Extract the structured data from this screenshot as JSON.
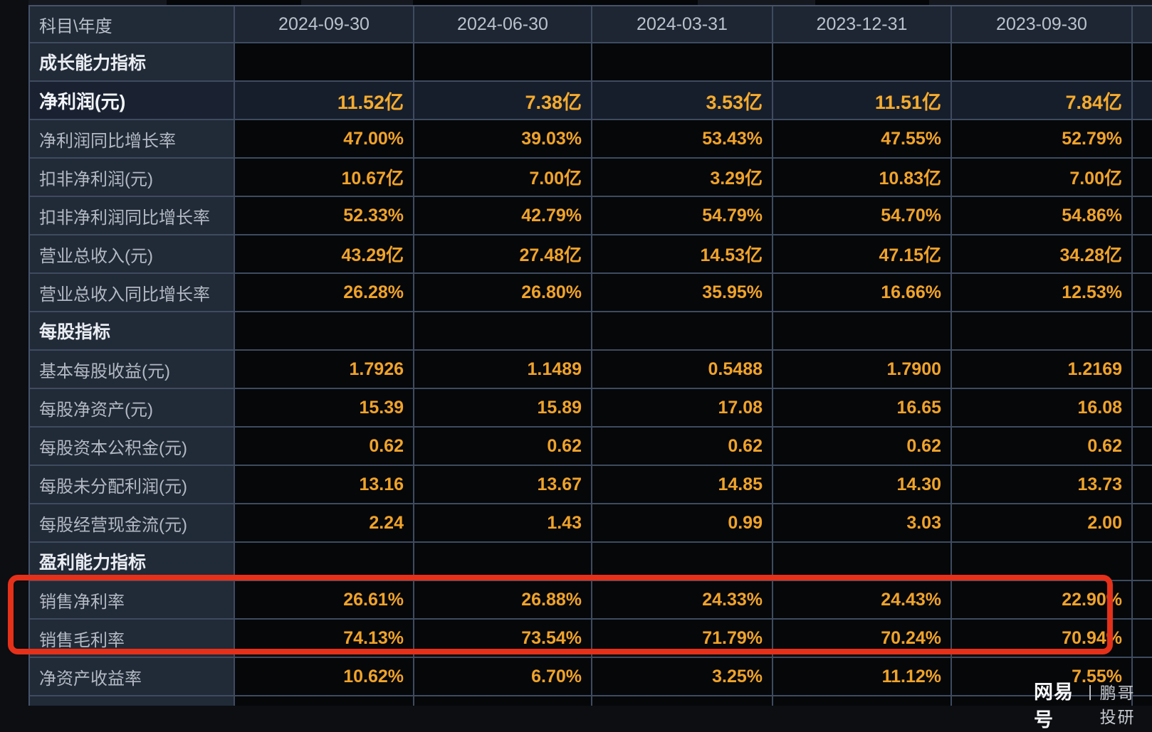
{
  "table": {
    "header": {
      "label": "科目\\年度",
      "dates": [
        "2024-09-30",
        "2024-06-30",
        "2024-03-31",
        "2023-12-31",
        "2023-09-30"
      ]
    },
    "rows": [
      {
        "type": "section",
        "label": "成长能力指标",
        "values": [
          "",
          "",
          "",
          "",
          ""
        ]
      },
      {
        "type": "highlight",
        "label": "净利润(元)",
        "values": [
          "11.52亿",
          "7.38亿",
          "3.53亿",
          "11.51亿",
          "7.84亿"
        ]
      },
      {
        "type": "data",
        "label": "净利润同比增长率",
        "values": [
          "47.00%",
          "39.03%",
          "53.43%",
          "47.55%",
          "52.79%"
        ]
      },
      {
        "type": "data",
        "label": "扣非净利润(元)",
        "values": [
          "10.67亿",
          "7.00亿",
          "3.29亿",
          "10.83亿",
          "7.00亿"
        ]
      },
      {
        "type": "data",
        "label": "扣非净利润同比增长率",
        "values": [
          "52.33%",
          "42.79%",
          "54.79%",
          "54.70%",
          "54.86%"
        ]
      },
      {
        "type": "data",
        "label": "营业总收入(元)",
        "values": [
          "43.29亿",
          "27.48亿",
          "14.53亿",
          "47.15亿",
          "34.28亿"
        ]
      },
      {
        "type": "data",
        "label": "营业总收入同比增长率",
        "values": [
          "26.28%",
          "26.80%",
          "35.95%",
          "16.66%",
          "12.53%"
        ]
      },
      {
        "type": "section",
        "label": "每股指标",
        "values": [
          "",
          "",
          "",
          "",
          ""
        ]
      },
      {
        "type": "data",
        "label": "基本每股收益(元)",
        "values": [
          "1.7926",
          "1.1489",
          "0.5488",
          "1.7900",
          "1.2169"
        ]
      },
      {
        "type": "data",
        "label": "每股净资产(元)",
        "values": [
          "15.39",
          "15.89",
          "17.08",
          "16.65",
          "16.08"
        ]
      },
      {
        "type": "data",
        "label": "每股资本公积金(元)",
        "values": [
          "0.62",
          "0.62",
          "0.62",
          "0.62",
          "0.62"
        ]
      },
      {
        "type": "data",
        "label": "每股未分配利润(元)",
        "values": [
          "13.16",
          "13.67",
          "14.85",
          "14.30",
          "13.73"
        ]
      },
      {
        "type": "data",
        "label": "每股经营现金流(元)",
        "values": [
          "2.24",
          "1.43",
          "0.99",
          "3.03",
          "2.00"
        ]
      },
      {
        "type": "section",
        "label": "盈利能力指标",
        "values": [
          "",
          "",
          "",
          "",
          ""
        ]
      },
      {
        "type": "data",
        "label": "销售净利率",
        "values": [
          "26.61%",
          "26.88%",
          "24.33%",
          "24.43%",
          "22.90%"
        ]
      },
      {
        "type": "data",
        "label": "销售毛利率",
        "values": [
          "74.13%",
          "73.54%",
          "71.79%",
          "70.24%",
          "70.94%"
        ]
      },
      {
        "type": "data",
        "label": "净资产收益率",
        "values": [
          "10.62%",
          "6.70%",
          "3.25%",
          "11.12%",
          "7.55%"
        ]
      },
      {
        "type": "empty",
        "label": "",
        "values": [
          "",
          "",
          "",
          "",
          ""
        ]
      }
    ]
  },
  "annotation": {
    "highlighted_rows": [
      "销售净利率",
      "销售毛利率"
    ],
    "box_color": "#e5301a"
  },
  "watermark": {
    "brand": "网易号",
    "divider": "丨",
    "author": "鹏哥投研"
  },
  "colors": {
    "grid_line": "#3e4b60",
    "header_bg": "#1d2632",
    "label_cell_bg": "#212a37",
    "value_cell_bg": "#060709",
    "highlight_row_bg": "#161e2c",
    "value_text": "#f0a32a",
    "label_text": "#b3bac5",
    "section_text": "#e9edf2"
  }
}
